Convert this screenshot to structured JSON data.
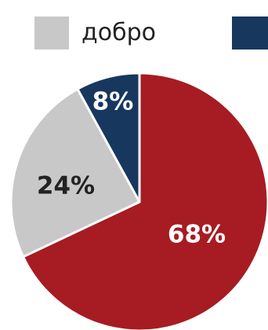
{
  "chart_data": {
    "type": "pie",
    "slices": [
      {
        "label": "",
        "value": 68,
        "value_label": "68%",
        "color": "#a61c22",
        "text_color": "#ffffff"
      },
      {
        "label": "добро",
        "value": 24,
        "value_label": "24%",
        "color": "#c8c8c8",
        "text_color": "#222222"
      },
      {
        "label": "",
        "value": 8,
        "value_label": "8%",
        "color": "#17375e",
        "text_color": "#ffffff"
      }
    ],
    "start": "12 o'clock",
    "direction": "clockwise",
    "legend_position": "top"
  }
}
